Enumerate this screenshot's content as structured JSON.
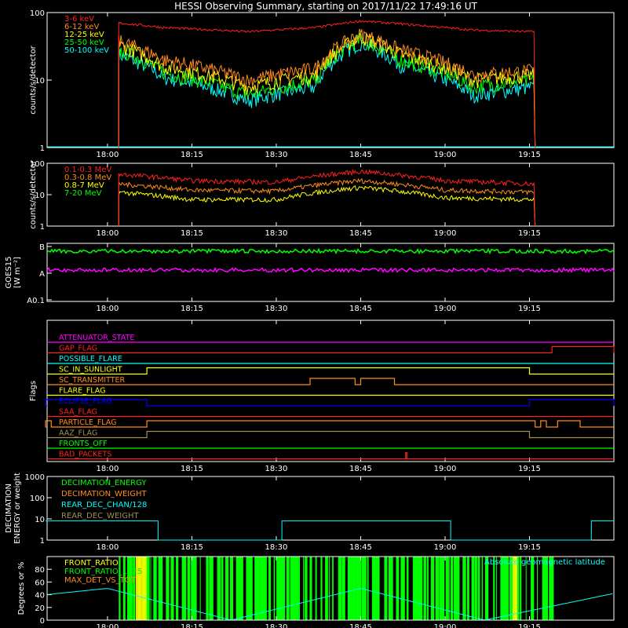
{
  "title": "HESSI Observing Summary, starting on 2017/11/22 17:49:16 UT",
  "time_axis": {
    "start": "17:49:16",
    "ticks": [
      "18:00",
      "18:15",
      "18:30",
      "18:45",
      "19:00",
      "19:15"
    ]
  },
  "colors": {
    "background": "#000000",
    "axes": "#ffffff",
    "red": "#ff2020",
    "orange": "#ff8c1a",
    "yellow": "#ffff00",
    "green": "#00ff00",
    "cyan": "#00ffff",
    "magenta": "#ff00ff",
    "blue": "#0000ff",
    "olive": "#a09050"
  },
  "chart_data": [
    {
      "type": "line",
      "ylabel": "counts/s/detector",
      "y_scale": "log",
      "ylim": [
        1,
        100
      ],
      "yticks": [
        "1",
        "10",
        "100"
      ],
      "legend_placement": "top-left",
      "series": [
        {
          "name": "3-6 keV",
          "color": "red",
          "x": [
            "18:02",
            "18:10",
            "18:25",
            "18:37",
            "18:45",
            "18:52",
            "19:05",
            "19:16"
          ],
          "values": [
            70,
            60,
            52,
            60,
            75,
            68,
            55,
            52
          ]
        },
        {
          "name": "6-12 keV",
          "color": "orange",
          "x": [
            "18:02",
            "18:10",
            "18:25",
            "18:37",
            "18:45",
            "18:52",
            "19:05",
            "19:16"
          ],
          "values": [
            38,
            20,
            10,
            15,
            48,
            28,
            12,
            14
          ]
        },
        {
          "name": "12-25 keV",
          "color": "yellow",
          "x": [
            "18:02",
            "18:10",
            "18:25",
            "18:37",
            "18:45",
            "18:52",
            "19:05",
            "19:16"
          ],
          "values": [
            33,
            16,
            8,
            12,
            44,
            24,
            10,
            12
          ]
        },
        {
          "name": "25-50 keV",
          "color": "green",
          "x": [
            "18:02",
            "18:10",
            "18:25",
            "18:37",
            "18:45",
            "18:52",
            "19:05",
            "19:16"
          ],
          "values": [
            28,
            13,
            6,
            10,
            40,
            20,
            8,
            10
          ]
        },
        {
          "name": "50-100 keV",
          "color": "cyan",
          "x": [
            "18:02",
            "18:10",
            "18:25",
            "18:37",
            "18:45",
            "18:52",
            "19:05",
            "19:16"
          ],
          "values": [
            24,
            11,
            5,
            8,
            36,
            17,
            6,
            8
          ]
        }
      ]
    },
    {
      "type": "line",
      "ylabel": "counts/s/detector",
      "y_scale": "log",
      "ylim": [
        1,
        100
      ],
      "yticks": [
        "1",
        "10",
        "100"
      ],
      "legend_placement": "top-left",
      "series": [
        {
          "name": "0.1-0.3 MeV",
          "color": "red",
          "x": [
            "18:02",
            "18:15",
            "18:30",
            "18:45",
            "19:00",
            "19:16"
          ],
          "values": [
            45,
            28,
            25,
            55,
            28,
            22
          ]
        },
        {
          "name": "0.3-0.8 MeV",
          "color": "orange",
          "x": [
            "18:02",
            "18:15",
            "18:30",
            "18:45",
            "19:00",
            "19:16"
          ],
          "values": [
            22,
            14,
            13,
            28,
            14,
            12
          ]
        },
        {
          "name": "0.8-7 MeV",
          "color": "yellow",
          "x": [
            "18:02",
            "18:15",
            "18:30",
            "18:45",
            "19:00",
            "19:16"
          ],
          "values": [
            12,
            7,
            7,
            17,
            8,
            7
          ]
        },
        {
          "name": "7-20 MeV",
          "color": "green",
          "x": [],
          "values": []
        }
      ]
    },
    {
      "type": "line",
      "ylabel": "GOES15",
      "ylabel2": "[W m⁻²]",
      "y_scale": "log",
      "yticks": [
        "A0.1",
        "A",
        "B"
      ],
      "series": [
        {
          "color": "green",
          "x": [
            "17:49",
            "19:30"
          ],
          "values": [
            "B-level",
            "B-level"
          ]
        },
        {
          "color": "magenta",
          "x": [
            "17:49",
            "19:30"
          ],
          "values": [
            "A-level",
            "A-level"
          ]
        }
      ]
    },
    {
      "type": "line",
      "ylabel": "Flags",
      "flags": [
        {
          "name": "ATTENUATOR_STATE",
          "color": "magenta",
          "on_intervals": []
        },
        {
          "name": "GAP_FLAG",
          "color": "red",
          "on_intervals": [
            [
              "19:19",
              "19:30"
            ]
          ]
        },
        {
          "name": "POSSIBLE_FLARE",
          "color": "cyan",
          "on_intervals": []
        },
        {
          "name": "SC_IN_SUNLIGHT",
          "color": "yellow",
          "on_intervals": [
            [
              "18:07",
              "19:15"
            ]
          ]
        },
        {
          "name": "SC_TRANSMITTER",
          "color": "orange",
          "on_intervals": [
            [
              "18:36",
              "18:44"
            ],
            [
              "18:45",
              "18:51"
            ]
          ]
        },
        {
          "name": "FLARE_FLAG",
          "color": "yellow",
          "on_intervals": []
        },
        {
          "name": "ECLIPSE_FLAG",
          "color": "blue",
          "on_intervals": [
            [
              "17:49",
              "18:07"
            ],
            [
              "19:15",
              "19:30"
            ]
          ]
        },
        {
          "name": "SAA_FLAG",
          "color": "red",
          "on_intervals": []
        },
        {
          "name": "PARTICLE_FLAG",
          "color": "orange",
          "on_intervals": [
            [
              "17:49",
              "17:50"
            ],
            [
              "18:07",
              "19:16"
            ],
            [
              "19:17",
              "19:18"
            ],
            [
              "19:20",
              "19:24"
            ]
          ]
        },
        {
          "name": "AAZ_FLAG",
          "color": "olive",
          "on_intervals": [
            [
              "18:07",
              "19:15"
            ]
          ]
        },
        {
          "name": "FRONTS_OFF",
          "color": "green",
          "on_intervals": []
        },
        {
          "name": "BAD_PACKETS",
          "color": "red",
          "on_intervals": [
            [
              "18:53",
              "18:53"
            ]
          ]
        }
      ]
    },
    {
      "type": "line",
      "ylabel": "DECIMATION",
      "ylabel2": "ENERGY or weight",
      "y_scale": "log",
      "ylim": [
        1,
        1000
      ],
      "yticks": [
        "1",
        "10",
        "100",
        "1000"
      ],
      "legend_placement": "top-left",
      "series": [
        {
          "name": "DECIMATION_ENERGY",
          "color": "green"
        },
        {
          "name": "DECIMATION_WEIGHT",
          "color": "orange"
        },
        {
          "name": "REAR_DEC_CHAN/128",
          "color": "cyan",
          "x": [
            "17:49",
            "18:09",
            "18:09",
            "18:31",
            "18:31",
            "19:01",
            "19:01",
            "19:26",
            "19:26",
            "19:30"
          ],
          "values": [
            8,
            8,
            1,
            1,
            8,
            8,
            1,
            1,
            8,
            8
          ]
        },
        {
          "name": "REAR_DEC_WEIGHT",
          "color": "olive"
        }
      ]
    },
    {
      "type": "line",
      "ylabel": "Degrees or %",
      "ylim": [
        0,
        100
      ],
      "yticks": [
        "0",
        "20",
        "40",
        "60",
        "80"
      ],
      "legend_placement": "top-left",
      "annotation": "Absolute geomagnetic latitude",
      "series": [
        {
          "name": "FRONT_RATIO",
          "color": "yellow"
        },
        {
          "name": "FRONT_RATIO_1225",
          "color": "green"
        },
        {
          "name": "MAX_DET_VS_TOT",
          "color": "orange"
        },
        {
          "color": "cyan",
          "x": [
            "17:49",
            "18:00",
            "18:22",
            "18:45",
            "19:07",
            "19:30"
          ],
          "values": [
            40,
            50,
            0,
            50,
            0,
            42
          ]
        }
      ]
    }
  ]
}
